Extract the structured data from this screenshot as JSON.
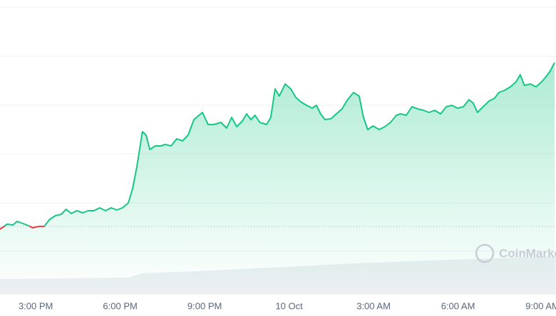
{
  "chart_data": {
    "type": "line",
    "x": [
      13.73,
      13.98,
      14.19,
      14.34,
      14.54,
      14.74,
      14.89,
      15.12,
      15.3,
      15.5,
      15.7,
      15.91,
      16.08,
      16.26,
      16.46,
      16.67,
      16.87,
      17.07,
      17.27,
      17.48,
      17.68,
      17.88,
      18.08,
      18.29,
      18.44,
      18.59,
      18.79,
      18.92,
      19.05,
      19.25,
      19.45,
      19.6,
      19.81,
      20.01,
      20.21,
      20.41,
      20.62,
      20.77,
      20.92,
      21.12,
      21.32,
      21.58,
      21.78,
      21.96,
      22.14,
      22.34,
      22.49,
      22.64,
      22.79,
      22.96,
      23.2,
      23.35,
      23.5,
      23.65,
      23.86,
      24.06,
      24.24,
      24.41,
      24.62,
      24.82,
      24.97,
      25.12,
      25.27,
      25.48,
      25.68,
      25.88,
      26.08,
      26.29,
      26.49,
      26.64,
      26.79,
      26.98,
      27.2,
      27.4,
      27.6,
      27.81,
      27.96,
      28.16,
      28.36,
      28.57,
      28.77,
      28.97,
      29.17,
      29.38,
      29.58,
      29.78,
      29.98,
      30.19,
      30.39,
      30.54,
      30.69,
      30.89,
      31.1,
      31.3,
      31.45,
      31.65,
      31.86,
      32.06,
      32.21,
      32.36,
      32.57,
      32.77,
      32.97,
      33.12,
      33.27,
      33.43
    ],
    "series": [
      {
        "color": "#16c784",
        "values": [
          31,
          38,
          37,
          42,
          39,
          36,
          33,
          35,
          35,
          45,
          50,
          52,
          59,
          53,
          57,
          54,
          57,
          57,
          61,
          57,
          61,
          58,
          61,
          68,
          88,
          118,
          168,
          163,
          143,
          148,
          148,
          150,
          148,
          158,
          155,
          163,
          185,
          190,
          195,
          178,
          178,
          181,
          173,
          188,
          175,
          183,
          193,
          185,
          191,
          181,
          178,
          188,
          228,
          218,
          235,
          228,
          216,
          210,
          205,
          201,
          205,
          193,
          185,
          186,
          193,
          200,
          213,
          223,
          218,
          188,
          171,
          176,
          171,
          175,
          181,
          191,
          193,
          191,
          203,
          200,
          198,
          195,
          198,
          193,
          203,
          205,
          201,
          203,
          213,
          208,
          195,
          203,
          211,
          215,
          223,
          226,
          231,
          238,
          248,
          233,
          235,
          231,
          238,
          245,
          253,
          265
        ]
      }
    ],
    "baseline": 35,
    "below_color": "#ea3943",
    "xlim": [
      13.73,
      33.48
    ],
    "ylim": [
      -60,
      343
    ],
    "xticks": [
      {
        "value": 15,
        "label": "3:00 PM"
      },
      {
        "value": 18,
        "label": "6:00 PM"
      },
      {
        "value": 21,
        "label": "9:00 PM"
      },
      {
        "value": 24,
        "label": "10 Oct"
      },
      {
        "value": 27,
        "label": "3:00 AM"
      },
      {
        "value": 30,
        "label": "6:00 AM"
      },
      {
        "value": 33,
        "label": "9:00 AM"
      }
    ],
    "watermark": "CoinMarketCap"
  }
}
